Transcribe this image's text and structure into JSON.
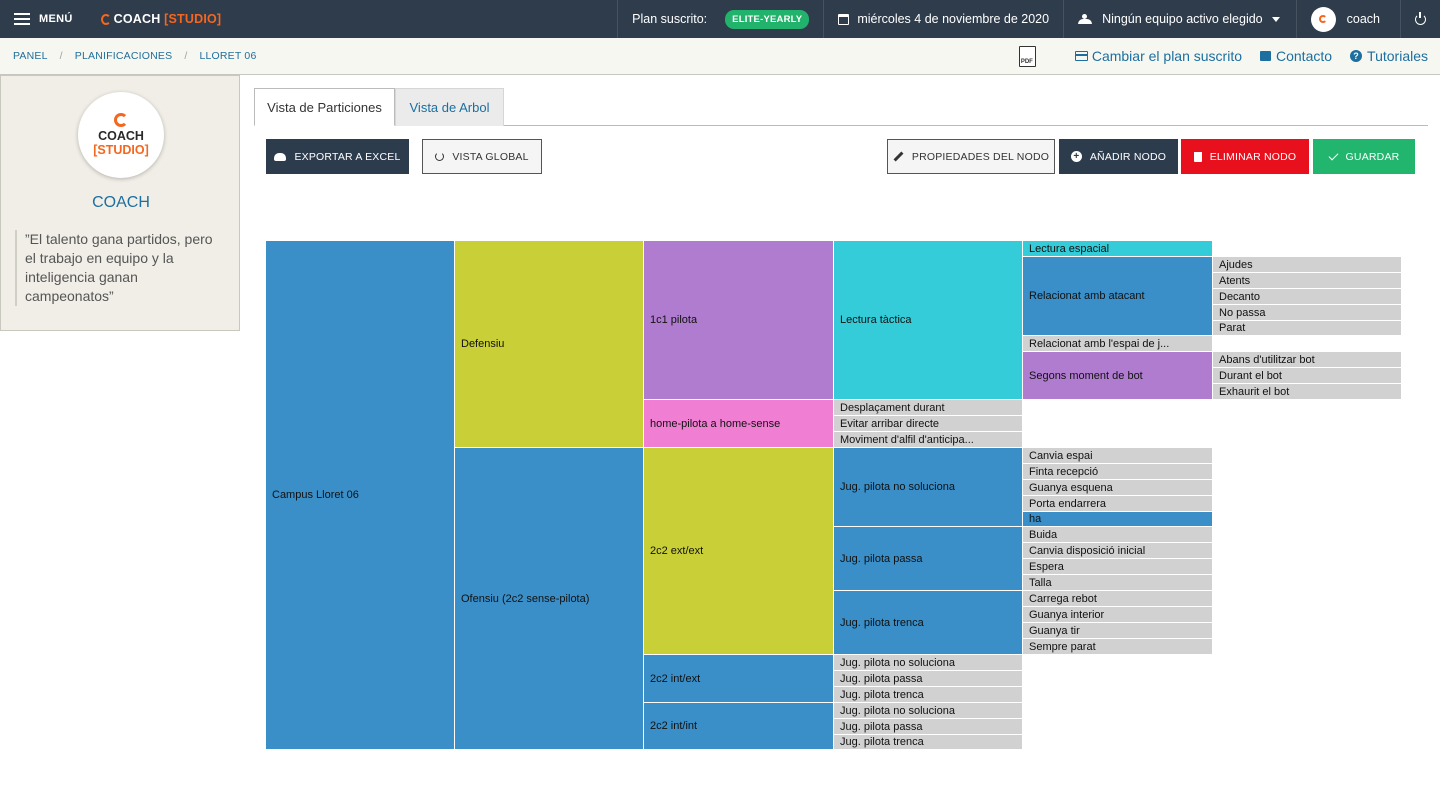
{
  "topbar": {
    "menu_label": "MENÚ",
    "logo_text": "COACH",
    "logo_bracket": "[STUDIO]",
    "plan_label": "Plan suscrito:",
    "plan_badge": "ELITE-YEARLY",
    "date": "miércoles 4 de noviembre de 2020",
    "team_select": "Ningún equipo activo elegido",
    "user": "coach"
  },
  "breadcrumb": [
    "PANEL",
    "PLANIFICACIONES",
    "LLORET 06"
  ],
  "toplinks": {
    "plan": "Cambiar el plan suscrito",
    "contact": "Contacto",
    "tutorials": "Tutoriales"
  },
  "sidebar": {
    "logo_line1": "COACH",
    "logo_line2": "[STUDIO]",
    "name": "COACH",
    "quote": "”El talento gana partidos, pero el trabajo en equipo y la inteligencia ganan campeonatos”"
  },
  "tabs": [
    "Vista de Particiones",
    "Vista de Arbol"
  ],
  "buttons": {
    "excel": "EXPORTAR A EXCEL",
    "global": "VISTA GLOBAL",
    "props": "PROPIEDADES DEL NODO",
    "add": "AÑADIR NODO",
    "delete": "ELIMINAR NODO",
    "save": "GUARDAR"
  },
  "partition": {
    "colors": {
      "blue": "#3a8fc9",
      "olive": "#c9cf36",
      "purple": "#b07ccf",
      "cyan": "#35ccd9",
      "pink": "#f07ed2",
      "grey": "#d1d1d1"
    },
    "nodes": [
      {
        "label": "Campus Lloret 06",
        "color": "blue"
      },
      {
        "label": "Defensiu",
        "color": "olive"
      },
      {
        "label": "Ofensiu (2c2 sense-pilota)",
        "color": "blue"
      },
      {
        "label": "1c1 pilota",
        "color": "purple"
      },
      {
        "label": "home-pilota a home-sense",
        "color": "pink"
      },
      {
        "label": "2c2 ext/ext",
        "color": "olive"
      },
      {
        "label": "2c2 int/ext",
        "color": "blue"
      },
      {
        "label": "2c2 int/int",
        "color": "blue"
      },
      {
        "label": "Lectura tàctica",
        "color": "cyan"
      },
      {
        "label": "Desplaçament durant",
        "color": "grey"
      },
      {
        "label": "Evitar arribar directe",
        "color": "grey"
      },
      {
        "label": "Moviment d'alfil d'anticipa...",
        "color": "grey"
      },
      {
        "label": "Jug. pilota no soluciona",
        "color": "blue"
      },
      {
        "label": "Jug. pilota passa",
        "color": "blue"
      },
      {
        "label": "Jug. pilota trenca",
        "color": "blue"
      },
      {
        "label": "Jug. pilota no soluciona",
        "color": "grey"
      },
      {
        "label": "Jug. pilota passa",
        "color": "grey"
      },
      {
        "label": "Jug. pilota trenca",
        "color": "grey"
      },
      {
        "label": "Jug. pilota no soluciona",
        "color": "grey"
      },
      {
        "label": "Jug. pilota passa",
        "color": "grey"
      },
      {
        "label": "Jug. pilota trenca",
        "color": "grey"
      },
      {
        "label": "Lectura espacial",
        "color": "cyan"
      },
      {
        "label": "Relacionat amb atacant",
        "color": "blue"
      },
      {
        "label": "Relacionat amb l'espai de j...",
        "color": "grey"
      },
      {
        "label": "Segons moment de bot",
        "color": "purple"
      },
      {
        "label": "Canvia espai",
        "color": "grey"
      },
      {
        "label": "Finta recepció",
        "color": "grey"
      },
      {
        "label": "Guanya esquena",
        "color": "grey"
      },
      {
        "label": "Porta endarrera",
        "color": "grey"
      },
      {
        "label": "ha",
        "color": "blue"
      },
      {
        "label": "Buida",
        "color": "grey"
      },
      {
        "label": "Canvia disposició inicial",
        "color": "grey"
      },
      {
        "label": "Espera",
        "color": "grey"
      },
      {
        "label": "Talla",
        "color": "grey"
      },
      {
        "label": "Carrega rebot",
        "color": "grey"
      },
      {
        "label": "Guanya interior",
        "color": "grey"
      },
      {
        "label": "Guanya tir",
        "color": "grey"
      },
      {
        "label": "Sempre parat",
        "color": "grey"
      },
      {
        "label": "Ajudes",
        "color": "grey"
      },
      {
        "label": "Atents",
        "color": "grey"
      },
      {
        "label": "Decanto",
        "color": "grey"
      },
      {
        "label": "No passa",
        "color": "grey"
      },
      {
        "label": "Parat",
        "color": "grey"
      },
      {
        "label": "Abans d'utilitzar bot",
        "color": "grey"
      },
      {
        "label": "Durant el bot",
        "color": "grey"
      },
      {
        "label": "Exhaurit el bot",
        "color": "grey"
      }
    ]
  }
}
